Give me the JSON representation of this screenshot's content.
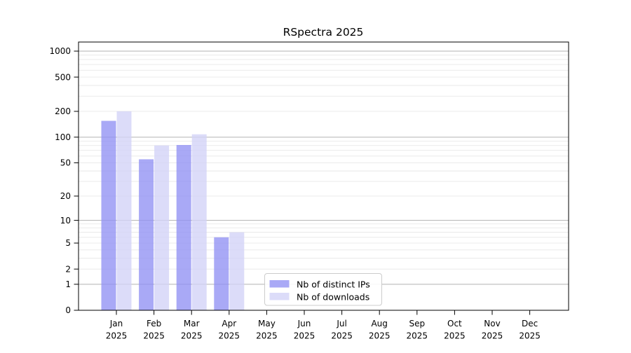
{
  "figure": {
    "background": "#ffffff",
    "axis_color": "#000000"
  },
  "chart_data": {
    "type": "bar",
    "title": "RSpectra 2025",
    "x_categories": [
      "Jan",
      "Feb",
      "Mar",
      "Apr",
      "May",
      "Jun",
      "Jul",
      "Aug",
      "Sep",
      "Oct",
      "Nov",
      "Dec"
    ],
    "x_year_labels": [
      "2025",
      "2025",
      "2025",
      "2025",
      "2025",
      "2025",
      "2025",
      "2025",
      "2025",
      "2025",
      "2025",
      "2025"
    ],
    "series": [
      {
        "name": "Nb of distinct IPs",
        "values": [
          155,
          55,
          81,
          6,
          0,
          0,
          0,
          0,
          0,
          0,
          0,
          0
        ],
        "bar_fill": "#9191f3",
        "bar_opacity": 0.78,
        "swatch_color": "#a9a9f6"
      },
      {
        "name": "Nb of downloads",
        "values": [
          200,
          80,
          108,
          7,
          0,
          0,
          0,
          0,
          0,
          0,
          0,
          0
        ],
        "bar_fill": "#d2d2f7",
        "bar_opacity": 0.78,
        "swatch_color": "#dcdcf9"
      }
    ],
    "yaxis": {
      "scale": "log10(v+1)",
      "range": [
        0,
        1300
      ],
      "tick_values": [
        0,
        1,
        2,
        5,
        10,
        20,
        50,
        100,
        200,
        500,
        1000
      ],
      "tick_labels": [
        "0",
        "1",
        "2",
        "5",
        "10",
        "20",
        "50",
        "100",
        "200",
        "500",
        "1000"
      ]
    },
    "grid": {
      "major_values": [
        1,
        10,
        100,
        1000
      ],
      "minor_values": [
        2,
        3,
        4,
        5,
        6,
        7,
        8,
        9,
        20,
        30,
        40,
        50,
        60,
        70,
        80,
        90,
        200,
        300,
        400,
        500,
        600,
        700,
        800,
        900
      ],
      "major_color": "#b2b2b2",
      "minor_color": "#e8e8e8"
    },
    "legend": {
      "position": "lower-center",
      "background": "#ffffff",
      "border_color": "#cccccc",
      "entries": [
        "Nb of distinct IPs",
        "Nb of downloads"
      ]
    }
  }
}
